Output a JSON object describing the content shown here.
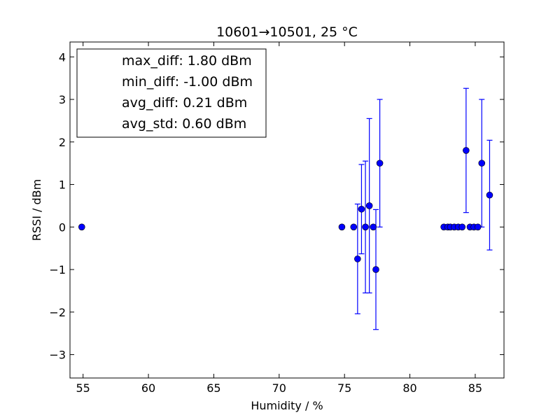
{
  "chart_data": {
    "type": "scatter",
    "title": "10601→10501, 25 °C",
    "xlabel": "Humidity / %",
    "ylabel": "RSSI / dBm",
    "xlim": [
      54.0,
      87.2
    ],
    "ylim": [
      -3.55,
      4.35
    ],
    "xticks": [
      55,
      60,
      65,
      70,
      75,
      80,
      85
    ],
    "yticks": [
      -3,
      -2,
      -1,
      0,
      1,
      2,
      3,
      4
    ],
    "xtick_labels": [
      "55",
      "60",
      "65",
      "70",
      "75",
      "80",
      "85"
    ],
    "ytick_labels": [
      "−3",
      "−2",
      "−1",
      "0",
      "1",
      "2",
      "3",
      "4"
    ],
    "grid": false,
    "marker_color": "#0000ff",
    "errorbar_color": "#0000ff",
    "points": [
      {
        "x": 54.9,
        "y": 0.0,
        "err": 0
      },
      {
        "x": 74.8,
        "y": 0.0,
        "err": 0
      },
      {
        "x": 75.7,
        "y": 0.0,
        "err": 0
      },
      {
        "x": 76.0,
        "y": -0.75,
        "err": 1.29
      },
      {
        "x": 76.3,
        "y": 0.42,
        "err": 1.05
      },
      {
        "x": 76.6,
        "y": 0.0,
        "err": 1.55
      },
      {
        "x": 76.9,
        "y": 0.5,
        "err": 2.05
      },
      {
        "x": 77.2,
        "y": 0.0,
        "err": 0
      },
      {
        "x": 77.4,
        "y": -1.0,
        "err": 1.41
      },
      {
        "x": 77.7,
        "y": 1.5,
        "err": 1.5
      },
      {
        "x": 82.6,
        "y": 0.0,
        "err": 0
      },
      {
        "x": 82.9,
        "y": 0.0,
        "err": 0
      },
      {
        "x": 83.1,
        "y": 0.0,
        "err": 0
      },
      {
        "x": 83.4,
        "y": 0.0,
        "err": 0
      },
      {
        "x": 83.7,
        "y": 0.0,
        "err": 0
      },
      {
        "x": 84.0,
        "y": 0.0,
        "err": 0
      },
      {
        "x": 84.3,
        "y": 1.8,
        "err": 1.46
      },
      {
        "x": 84.6,
        "y": 0.0,
        "err": 0
      },
      {
        "x": 84.9,
        "y": 0.0,
        "err": 0
      },
      {
        "x": 85.2,
        "y": 0.0,
        "err": 0
      },
      {
        "x": 85.5,
        "y": 1.5,
        "err": 1.5
      },
      {
        "x": 86.1,
        "y": 0.75,
        "err": 1.29
      }
    ],
    "legend": {
      "location": "upper-left",
      "entries": [
        "max_diff: 1.80 dBm",
        "min_diff: -1.00 dBm",
        "avg_diff: 0.21 dBm",
        "avg_std: 0.60 dBm"
      ]
    }
  }
}
